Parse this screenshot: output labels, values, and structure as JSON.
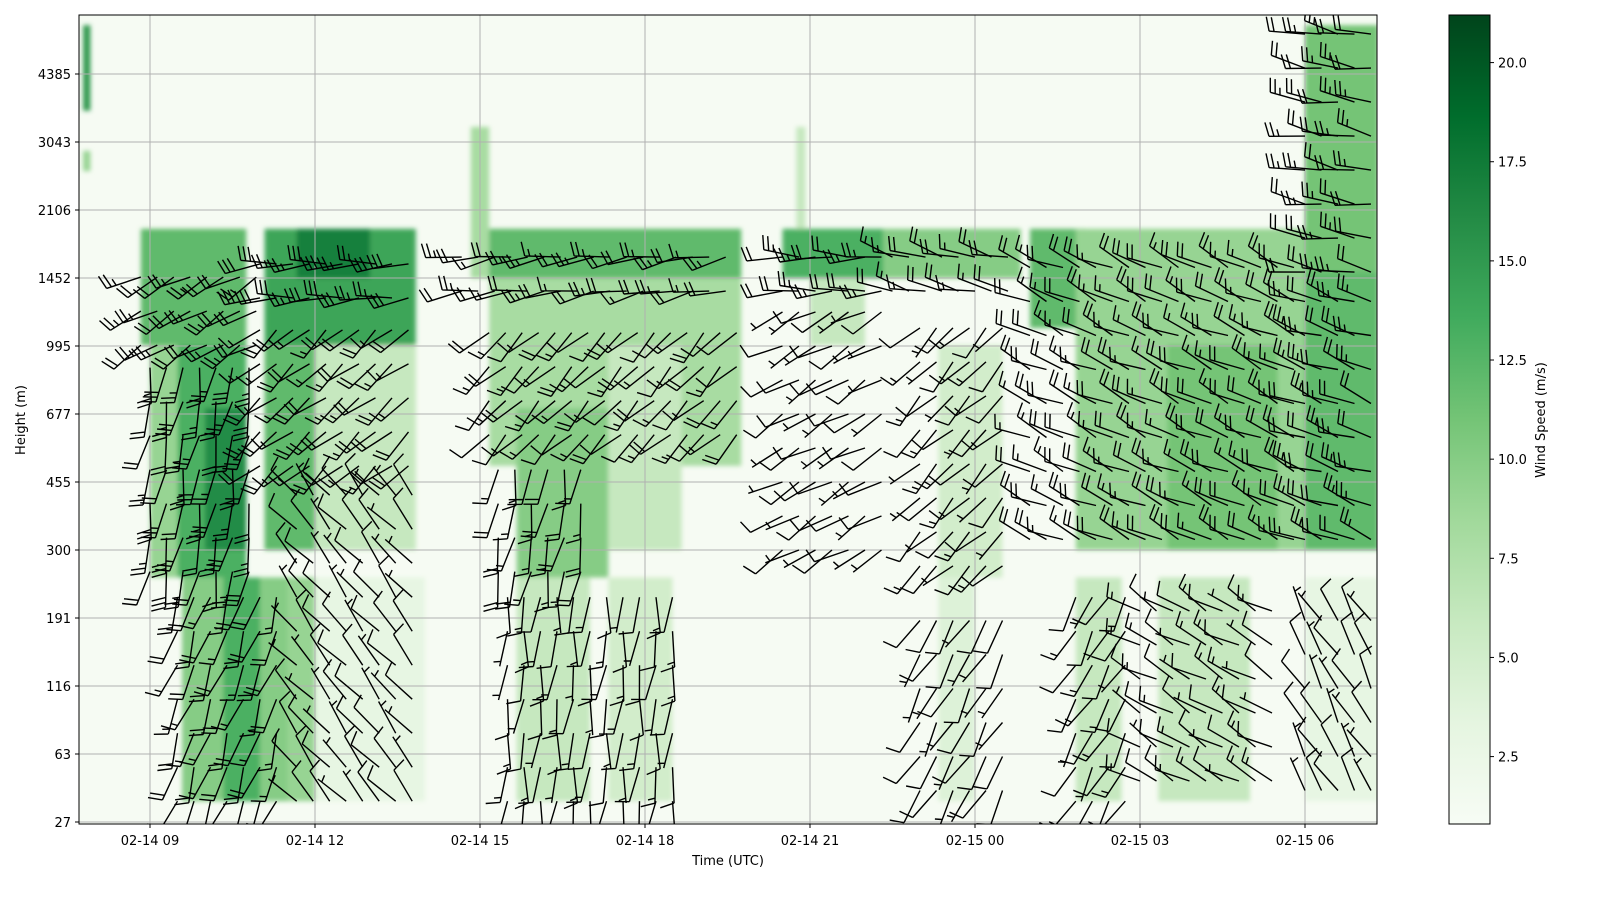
{
  "chart_data": {
    "type": "heatmap",
    "title": "",
    "xlabel": "Time (UTC)",
    "ylabel": "Height (m)",
    "colorbar_label": "Wind Speed (m/s)",
    "colormap": "Greens",
    "colormap_stops": [
      "#f7fcf5",
      "#e5f5e0",
      "#c7e9c0",
      "#a1d99b",
      "#74c476",
      "#41ab5d",
      "#238b45",
      "#006d2c",
      "#00441b"
    ],
    "clim": [
      0.8,
      21.2
    ],
    "colorbar_ticks": [
      "2.5",
      "5.0",
      "7.5",
      "10.0",
      "12.5",
      "15.0",
      "17.5",
      "20.0"
    ],
    "xlim": [
      "02-14 07:43",
      "02-15 07:19"
    ],
    "ylim": [
      26,
      5800
    ],
    "x_ticks": [
      "02-14 09",
      "02-14 12",
      "02-14 15",
      "02-14 18",
      "02-14 21",
      "02-15 00",
      "02-15 03",
      "02-15 06"
    ],
    "y_ticks": [
      "27",
      "63",
      "116",
      "191",
      "300",
      "455",
      "677",
      "995",
      "1452",
      "2106",
      "3043",
      "4385"
    ],
    "grid": true,
    "background_speed": 1.0,
    "speed_blocks": [
      {
        "t0": "02-14 07:47",
        "t1": "02-14 07:55",
        "z0": 3600,
        "z1": 5700,
        "speed": 15
      },
      {
        "t0": "02-14 07:47",
        "t1": "02-14 07:55",
        "z0": 2600,
        "z1": 2900,
        "speed": 9
      },
      {
        "t0": "02-14 08:50",
        "t1": "02-14 10:45",
        "z0": 1000,
        "z1": 1900,
        "speed": 12
      },
      {
        "t0": "02-14 09:00",
        "t1": "02-14 09:30",
        "z0": 250,
        "z1": 1000,
        "speed": 9
      },
      {
        "t0": "02-14 09:30",
        "t1": "02-14 10:45",
        "z0": 250,
        "z1": 1000,
        "speed": 13
      },
      {
        "t0": "02-14 10:00",
        "t1": "02-14 10:45",
        "z0": 300,
        "z1": 700,
        "speed": 16
      },
      {
        "t0": "02-14 09:35",
        "t1": "02-14 11:30",
        "z0": 35,
        "z1": 250,
        "speed": 10
      },
      {
        "t0": "02-14 10:20",
        "t1": "02-14 11:00",
        "z0": 35,
        "z1": 250,
        "speed": 13
      },
      {
        "t0": "02-14 11:05",
        "t1": "02-14 13:50",
        "z0": 1000,
        "z1": 1900,
        "speed": 14
      },
      {
        "t0": "02-14 11:40",
        "t1": "02-14 13:00",
        "z0": 1450,
        "z1": 1900,
        "speed": 17
      },
      {
        "t0": "02-14 11:05",
        "t1": "02-14 12:00",
        "z0": 300,
        "z1": 1000,
        "speed": 12
      },
      {
        "t0": "02-14 12:00",
        "t1": "02-14 13:50",
        "z0": 300,
        "z1": 1000,
        "speed": 6
      },
      {
        "t0": "02-14 11:30",
        "t1": "02-14 12:00",
        "z0": 35,
        "z1": 250,
        "speed": 9
      },
      {
        "t0": "02-14 12:00",
        "t1": "02-14 14:00",
        "z0": 35,
        "z1": 250,
        "speed": 3
      },
      {
        "t0": "02-14 14:50",
        "t1": "02-14 15:10",
        "z0": 1450,
        "z1": 3300,
        "speed": 8
      },
      {
        "t0": "02-14 15:10",
        "t1": "02-14 19:45",
        "z0": 1450,
        "z1": 1900,
        "speed": 12
      },
      {
        "t0": "02-14 15:10",
        "t1": "02-14 19:45",
        "z0": 500,
        "z1": 1450,
        "speed": 8
      },
      {
        "t0": "02-14 15:40",
        "t1": "02-14 17:20",
        "z0": 250,
        "z1": 700,
        "speed": 10
      },
      {
        "t0": "02-14 17:20",
        "t1": "02-14 18:40",
        "z0": 300,
        "z1": 1000,
        "speed": 6
      },
      {
        "t0": "02-14 15:40",
        "t1": "02-14 17:00",
        "z0": 35,
        "z1": 250,
        "speed": 6
      },
      {
        "t0": "02-14 17:20",
        "t1": "02-14 18:30",
        "z0": 35,
        "z1": 250,
        "speed": 5
      },
      {
        "t0": "02-14 20:45",
        "t1": "02-14 20:55",
        "z0": 1500,
        "z1": 3300,
        "speed": 6
      },
      {
        "t0": "02-14 20:30",
        "t1": "02-14 22:20",
        "z0": 1450,
        "z1": 1900,
        "speed": 13
      },
      {
        "t0": "02-14 21:00",
        "t1": "02-14 22:00",
        "z0": 1000,
        "z1": 1450,
        "speed": 6
      },
      {
        "t0": "02-14 22:20",
        "t1": "02-15 00:50",
        "z0": 1450,
        "z1": 1900,
        "speed": 10
      },
      {
        "t0": "02-14 23:20",
        "t1": "02-15 00:30",
        "z0": 250,
        "z1": 1000,
        "speed": 5
      },
      {
        "t0": "02-14 23:20",
        "t1": "02-15 00:00",
        "z0": 35,
        "z1": 250,
        "speed": 4
      },
      {
        "t0": "02-15 01:00",
        "t1": "02-15 02:00",
        "z0": 1100,
        "z1": 1900,
        "speed": 12
      },
      {
        "t0": "02-15 01:50",
        "t1": "02-15 06:00",
        "z0": 300,
        "z1": 1900,
        "speed": 9
      },
      {
        "t0": "02-15 03:30",
        "t1": "02-15 05:30",
        "z0": 300,
        "z1": 1000,
        "speed": 11
      },
      {
        "t0": "02-15 01:50",
        "t1": "02-15 02:40",
        "z0": 35,
        "z1": 250,
        "speed": 6
      },
      {
        "t0": "02-15 03:20",
        "t1": "02-15 05:00",
        "z0": 35,
        "z1": 250,
        "speed": 6
      },
      {
        "t0": "02-15 06:00",
        "t1": "02-15 07:20",
        "z0": 1500,
        "z1": 5700,
        "speed": 11
      },
      {
        "t0": "02-15 06:00",
        "t1": "02-15 07:20",
        "z0": 300,
        "z1": 1500,
        "speed": 12
      },
      {
        "t0": "02-15 06:00",
        "t1": "02-15 07:20",
        "z0": 35,
        "z1": 250,
        "speed": 3
      }
    ],
    "wind_barbs": [
      {
        "t0": "02-14 08:50",
        "t1": "02-14 11:00",
        "z0": 1000,
        "z1": 1700,
        "dir": 240,
        "speed": 12
      },
      {
        "t0": "02-14 09:00",
        "t1": "02-14 11:00",
        "z0": 260,
        "z1": 950,
        "dir": 190,
        "speed": 13
      },
      {
        "t0": "02-14 09:30",
        "t1": "02-14 11:30",
        "z0": 35,
        "z1": 230,
        "dir": 200,
        "speed": 10
      },
      {
        "t0": "02-14 11:00",
        "t1": "02-14 13:50",
        "z0": 1300,
        "z1": 1700,
        "dir": 265,
        "speed": 15
      },
      {
        "t0": "02-14 11:00",
        "t1": "02-14 13:50",
        "z0": 500,
        "z1": 1200,
        "dir": 230,
        "speed": 10
      },
      {
        "t0": "02-14 11:40",
        "t1": "02-14 14:00",
        "z0": 35,
        "z1": 450,
        "dir": 320,
        "speed": 5
      },
      {
        "t0": "02-14 14:40",
        "t1": "02-14 19:40",
        "z0": 1350,
        "z1": 1700,
        "dir": 260,
        "speed": 11
      },
      {
        "t0": "02-14 15:10",
        "t1": "02-14 19:40",
        "z0": 600,
        "z1": 1250,
        "dir": 225,
        "speed": 8
      },
      {
        "t0": "02-14 15:20",
        "t1": "02-14 17:00",
        "z0": 260,
        "z1": 550,
        "dir": 190,
        "speed": 9
      },
      {
        "t0": "02-14 15:30",
        "t1": "02-14 18:40",
        "z0": 35,
        "z1": 230,
        "dir": 185,
        "speed": 6
      },
      {
        "t0": "02-14 20:30",
        "t1": "02-14 22:20",
        "z0": 1350,
        "z1": 1750,
        "dir": 270,
        "speed": 12
      },
      {
        "t0": "02-14 20:30",
        "t1": "02-14 22:20",
        "z0": 300,
        "z1": 1250,
        "dir": 240,
        "speed": 5
      },
      {
        "t0": "02-14 22:30",
        "t1": "02-15 00:50",
        "z0": 1350,
        "z1": 1800,
        "dir": 285,
        "speed": 10
      },
      {
        "t0": "02-14 23:00",
        "t1": "02-15 00:40",
        "z0": 270,
        "z1": 1200,
        "dir": 225,
        "speed": 6
      },
      {
        "t0": "02-14 23:00",
        "t1": "02-15 00:40",
        "z0": 40,
        "z1": 230,
        "dir": 210,
        "speed": 5
      },
      {
        "t0": "02-15 01:00",
        "t1": "02-15 06:00",
        "z0": 320,
        "z1": 1800,
        "dir": 295,
        "speed": 10
      },
      {
        "t0": "02-15 01:50",
        "t1": "02-15 03:00",
        "z0": 35,
        "z1": 230,
        "dir": 210,
        "speed": 6
      },
      {
        "t0": "02-15 03:00",
        "t1": "02-15 05:30",
        "z0": 45,
        "z1": 230,
        "dir": 300,
        "speed": 6
      },
      {
        "t0": "02-15 06:00",
        "t1": "02-15 07:20",
        "z0": 1500,
        "z1": 5600,
        "dir": 280,
        "speed": 12
      },
      {
        "t0": "02-15 06:00",
        "t1": "02-15 07:20",
        "z0": 320,
        "z1": 1450,
        "dir": 290,
        "speed": 12
      },
      {
        "t0": "02-15 06:00",
        "t1": "02-15 07:20",
        "z0": 40,
        "z1": 230,
        "dir": 330,
        "speed": 5
      }
    ]
  }
}
